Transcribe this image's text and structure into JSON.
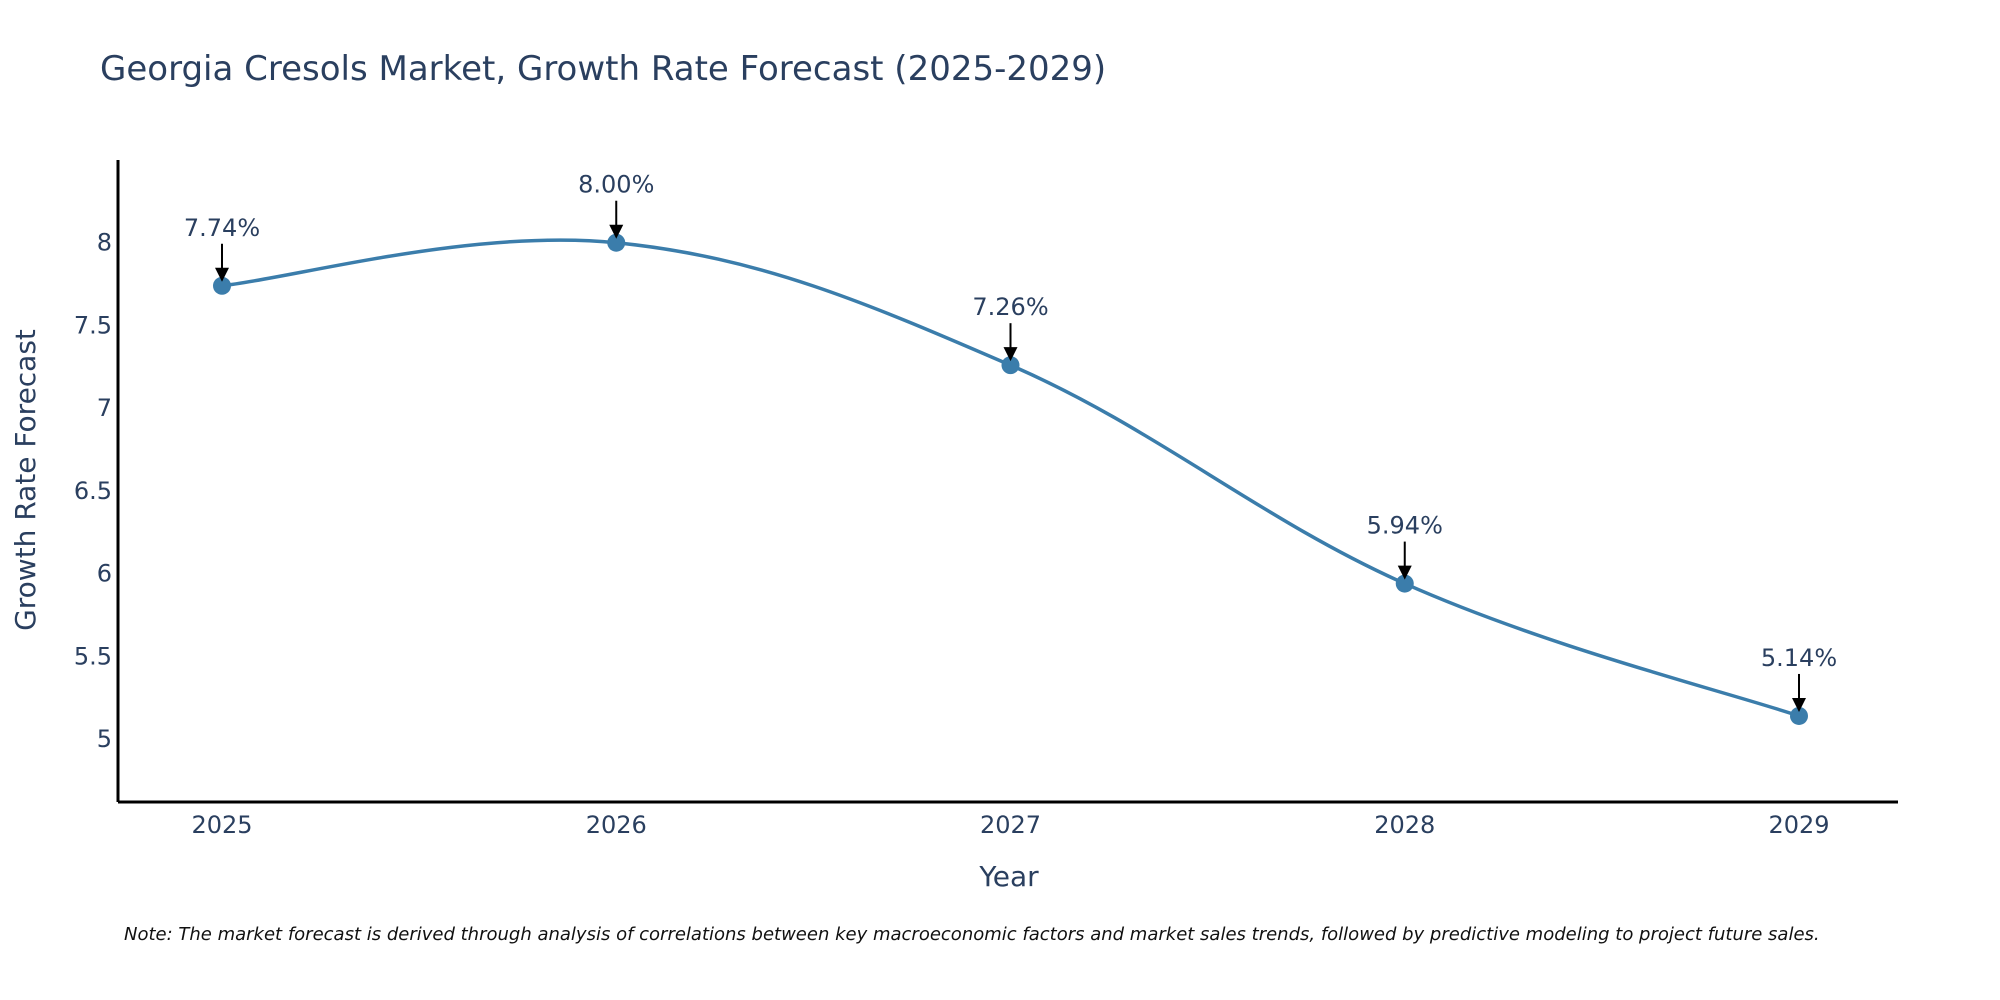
{
  "chart_data": {
    "type": "line",
    "title": "Georgia Cresols Market, Growth Rate Forecast (2025-2029)",
    "xlabel": "Year",
    "ylabel": "Growth Rate Forecast",
    "categories": [
      "2025",
      "2026",
      "2027",
      "2028",
      "2029"
    ],
    "values": [
      7.74,
      8.0,
      7.26,
      5.94,
      5.14
    ],
    "data_labels": [
      "7.74%",
      "8.00%",
      "7.26%",
      "5.94%",
      "5.14%"
    ],
    "ylim": [
      4.62,
      8.5
    ],
    "y_ticks": [
      5,
      5.5,
      6,
      6.5,
      7,
      7.5,
      8
    ],
    "y_tick_labels": [
      "5",
      "5.5",
      "6",
      "6.5",
      "7",
      "7.5",
      "8"
    ],
    "grid": false,
    "line_color": "#3b7dab",
    "marker_color": "#3b7dab",
    "arrow_color": "#000000",
    "note": "Note: The market forecast is derived through analysis of correlations between key macroeconomic factors and market sales trends, followed by predictive modeling to project future sales."
  }
}
